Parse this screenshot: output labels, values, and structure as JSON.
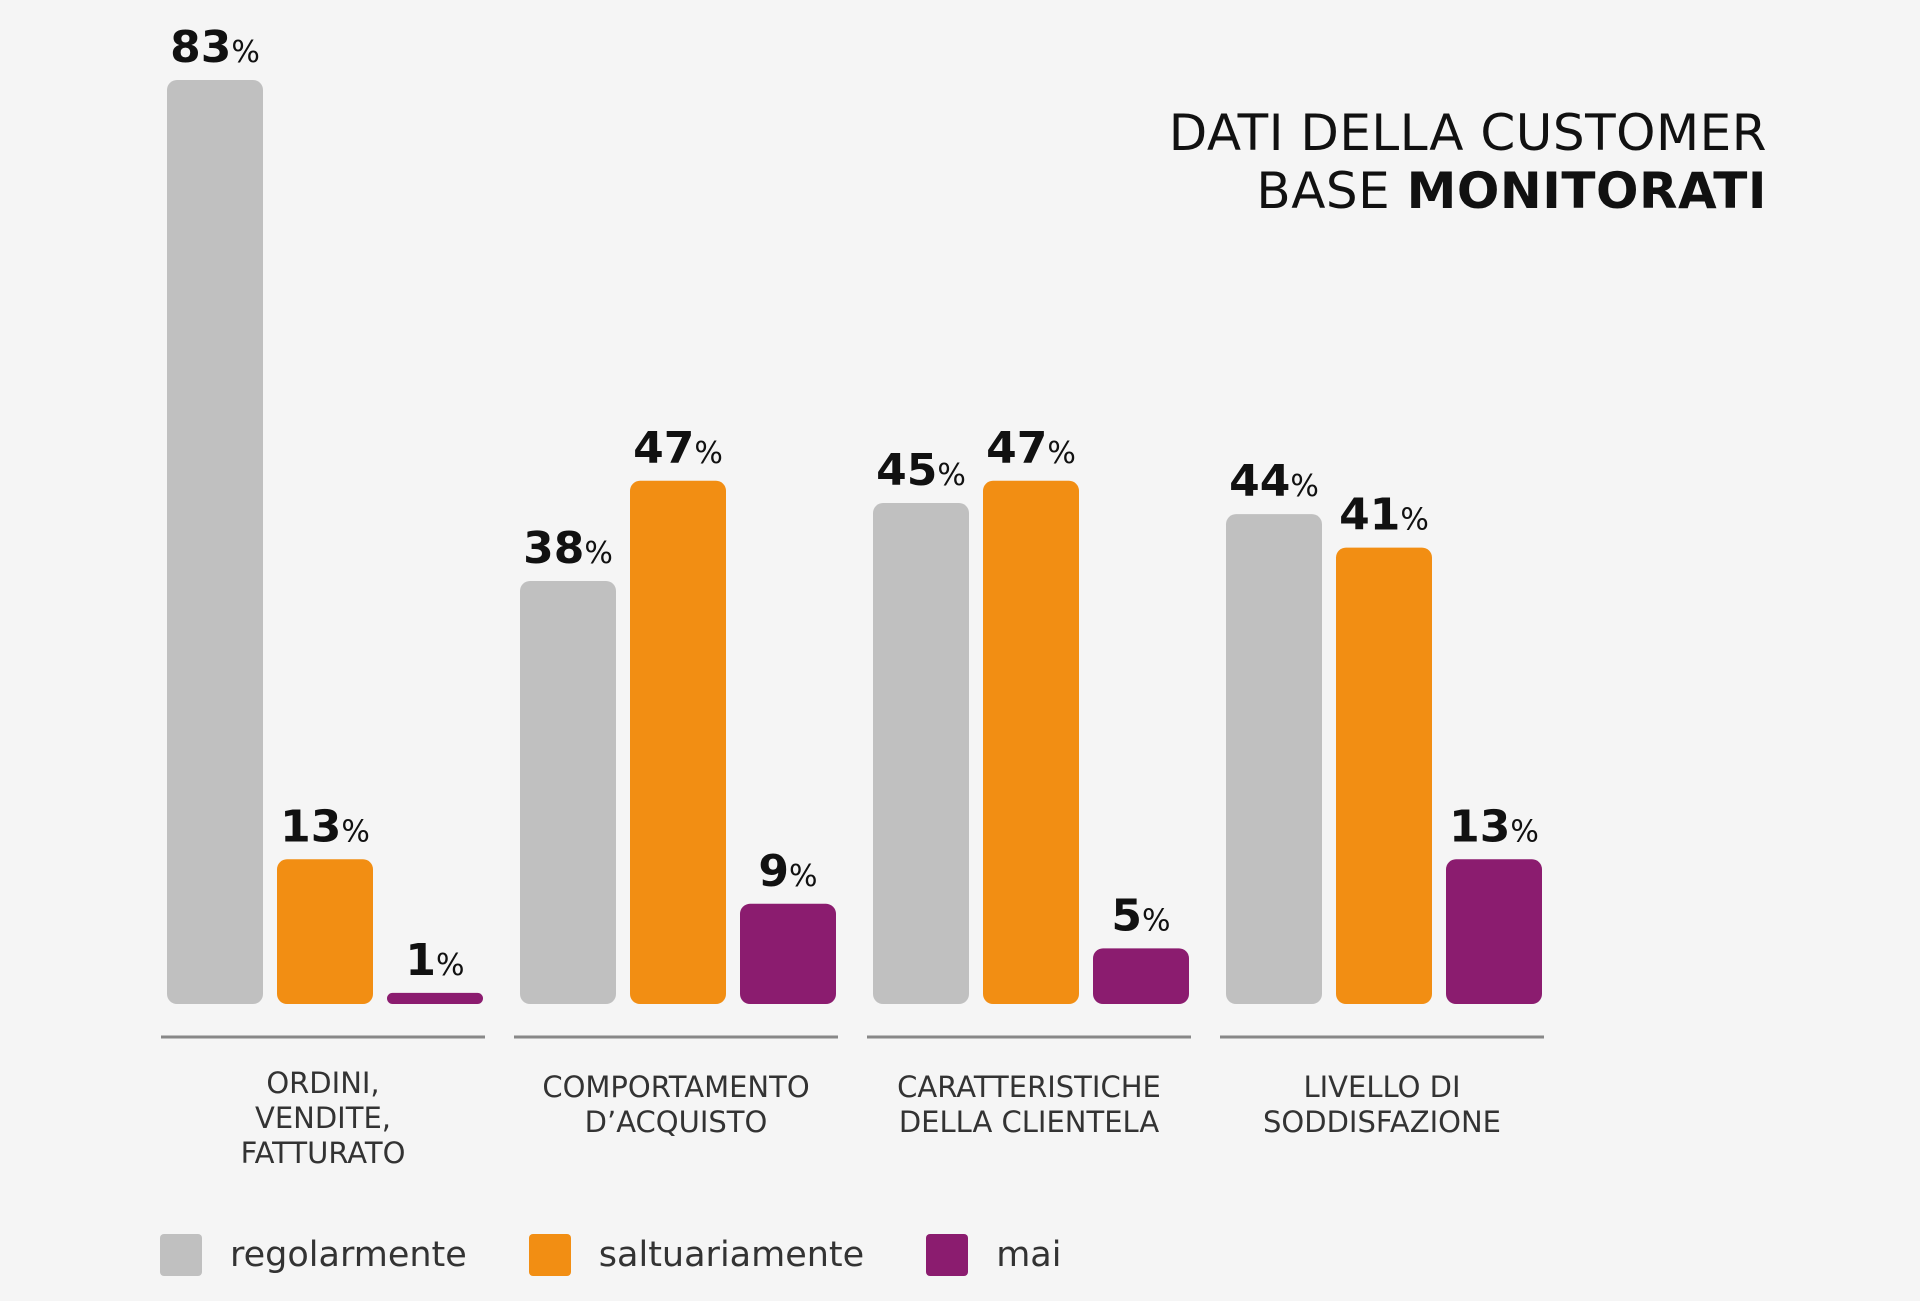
{
  "title": {
    "line1": "DATI DELLA CUSTOMER",
    "line2_regular": "BASE ",
    "line2_bold": "MONITORATI"
  },
  "colors": {
    "regolarmente": "#c0c0c0",
    "saltuariamente": "#f28e13",
    "mai": "#8b1c6f",
    "baseline": "#888888",
    "label_text": "#333333",
    "value_text": "#111111"
  },
  "legend": [
    {
      "name": "regolarmente",
      "color": "#c0c0c0"
    },
    {
      "name": "saltuariamente",
      "color": "#f28e13"
    },
    {
      "name": "mai",
      "color": "#8b1c6f"
    }
  ],
  "chart_data": {
    "type": "bar",
    "title": "DATI DELLA CUSTOMER BASE MONITORATI",
    "categories": [
      [
        "ORDINI,",
        "VENDITE,",
        "FATTURATO"
      ],
      [
        "COMPORTAMENTO",
        "D’ACQUISTO"
      ],
      [
        "CARATTERISTICHE",
        "DELLA CLIENTELA"
      ],
      [
        "LIVELLO DI",
        "SODDISFAZIONE"
      ]
    ],
    "series": [
      {
        "name": "regolarmente",
        "values": [
          83,
          38,
          45,
          44
        ]
      },
      {
        "name": "saltuariamente",
        "values": [
          13,
          47,
          47,
          41
        ]
      },
      {
        "name": "mai",
        "values": [
          1,
          9,
          5,
          13
        ]
      }
    ],
    "value_suffix": "%",
    "ylim": [
      0,
      83
    ],
    "grid": false,
    "legend_position": "bottom-left"
  }
}
